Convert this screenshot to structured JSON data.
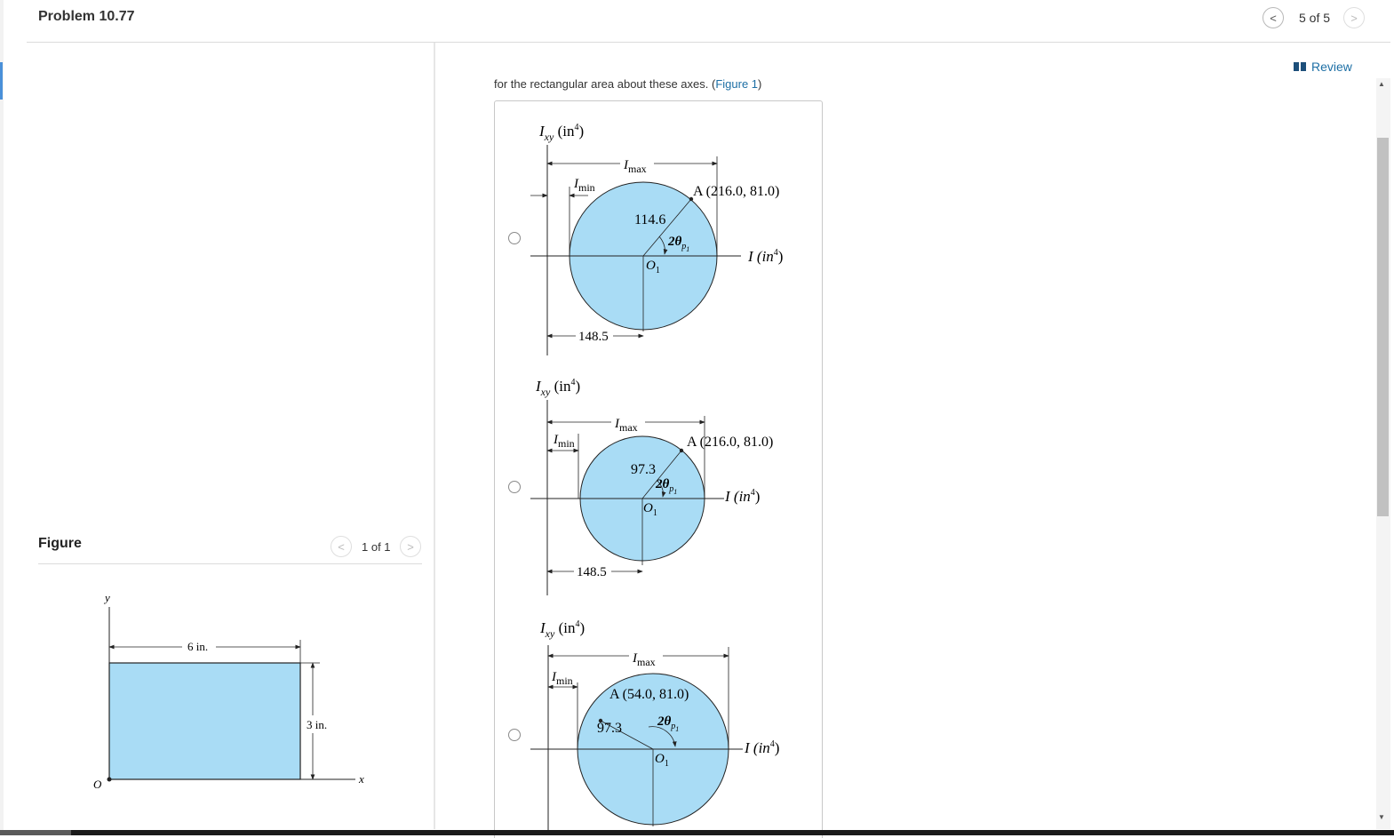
{
  "header": {
    "title": "Problem 10.77",
    "pager": "5 of 5",
    "prev_icon": "chevron-left-icon",
    "next_icon": "chevron-right-icon"
  },
  "review": {
    "label": "Review",
    "icon": "book-icon"
  },
  "question": {
    "prompt_text": "for the rectangular area about these axes. (",
    "figure_link": "Figure 1",
    "prompt_close": ")"
  },
  "figure_panel": {
    "title": "Figure",
    "pager": "1 of 1",
    "diagram": {
      "y_label": "y",
      "x_label": "x",
      "origin_label": "O",
      "width_label": "6 in.",
      "height_label": "3 in."
    }
  },
  "options": [
    {
      "axis_y": "I",
      "axis_y_sub": "xy",
      "axis_y_unit": " (in",
      "axis_y_sup": "4",
      "axis_y_close": ")",
      "axis_x": "I (in",
      "axis_x_sup": "4",
      "axis_x_close": ")",
      "imax": "I",
      "imax_sub": "max",
      "imin": "I",
      "imin_sub": "min",
      "point_label": "A (216.0, 81.0)",
      "radius_label": "114.6",
      "center_label": "O",
      "center_sub": "1",
      "angle_label": "2θ",
      "angle_sub": "p",
      "angle_sub2": "1",
      "center_dim": "148.5"
    },
    {
      "axis_y": "I",
      "axis_y_sub": "xy",
      "axis_y_unit": " (in",
      "axis_y_sup": "4",
      "axis_y_close": ")",
      "axis_x": "I (in",
      "axis_x_sup": "4",
      "axis_x_close": ")",
      "imax": "I",
      "imax_sub": "max",
      "imin": "I",
      "imin_sub": "min",
      "point_label": "A (216.0, 81.0)",
      "radius_label": "97.3",
      "center_label": "O",
      "center_sub": "1",
      "angle_label": "2θ",
      "angle_sub": "p",
      "angle_sub2": "1",
      "center_dim": "148.5"
    },
    {
      "axis_y": "I",
      "axis_y_sub": "xy",
      "axis_y_unit": " (in",
      "axis_y_sup": "4",
      "axis_y_close": ")",
      "axis_x": "I (in",
      "axis_x_sup": "4",
      "axis_x_close": ")",
      "imax": "I",
      "imax_sub": "max",
      "imin": "I",
      "imin_sub": "min",
      "point_label": "A (54.0, 81.0)",
      "radius_label": "97.3",
      "center_label": "O",
      "center_sub": "1",
      "angle_label": "2θ",
      "angle_sub": "p",
      "angle_sub2": "1"
    }
  ],
  "colors": {
    "circle_fill": "#a9dcf5",
    "link": "#1d6fa5"
  }
}
